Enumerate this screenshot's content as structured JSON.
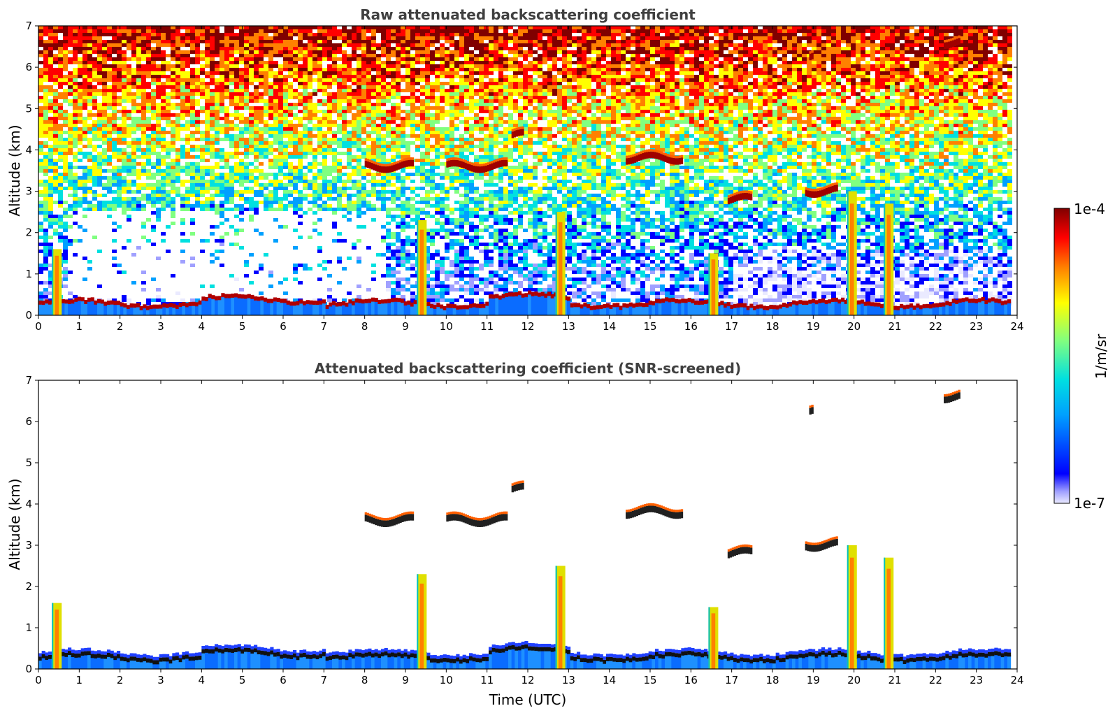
{
  "chart_data": [
    {
      "type": "heatmap",
      "title": "Raw attenuated backscattering coefficient",
      "xlabel": "",
      "ylabel": "Altitude (km)",
      "xlim": [
        0,
        24
      ],
      "ylim": [
        0,
        7
      ],
      "x_ticks": [
        "0",
        "1",
        "2",
        "3",
        "4",
        "5",
        "6",
        "7",
        "8",
        "9",
        "10",
        "11",
        "12",
        "13",
        "14",
        "15",
        "16",
        "17",
        "18",
        "19",
        "20",
        "21",
        "22",
        "23",
        "24"
      ],
      "y_ticks": [
        "0",
        "1",
        "2",
        "3",
        "4",
        "5",
        "6",
        "7"
      ],
      "data_end_time": 23.8,
      "features": {
        "boundary_layer_top_km": 0.25,
        "cloud_layers": [
          {
            "start": 8.0,
            "end": 9.2,
            "alt": 3.6
          },
          {
            "start": 10.0,
            "end": 11.5,
            "alt": 3.6
          },
          {
            "start": 14.4,
            "end": 15.8,
            "alt": 3.8
          },
          {
            "start": 16.9,
            "end": 17.5,
            "alt": 2.8
          },
          {
            "start": 18.8,
            "end": 19.6,
            "alt": 3.0
          },
          {
            "start": 11.6,
            "end": 11.9,
            "alt": 4.35
          },
          {
            "start": 18.9,
            "end": 19.0,
            "alt": 6.25
          },
          {
            "start": 22.2,
            "end": 22.6,
            "alt": 6.6
          }
        ],
        "precipitation_columns": [
          {
            "t": 0.45,
            "top": 1.6
          },
          {
            "t": 9.4,
            "top": 2.3
          },
          {
            "t": 12.8,
            "top": 2.5
          },
          {
            "t": 16.55,
            "top": 1.5
          },
          {
            "t": 19.95,
            "top": 3.0
          },
          {
            "t": 20.85,
            "top": 2.7
          }
        ]
      }
    },
    {
      "type": "heatmap",
      "title": "Attenuated backscattering coefficient (SNR-screened)",
      "xlabel": "Time (UTC)",
      "ylabel": "Altitude (km)",
      "xlim": [
        0,
        24
      ],
      "ylim": [
        0,
        7
      ],
      "x_ticks": [
        "0",
        "1",
        "2",
        "3",
        "4",
        "5",
        "6",
        "7",
        "8",
        "9",
        "10",
        "11",
        "12",
        "13",
        "14",
        "15",
        "16",
        "17",
        "18",
        "19",
        "20",
        "21",
        "22",
        "23",
        "24"
      ],
      "y_ticks": [
        "0",
        "1",
        "2",
        "3",
        "4",
        "5",
        "6",
        "7"
      ]
    }
  ],
  "colorbar": {
    "label": "1/m/sr",
    "max_label": "1e-4",
    "min_label": "1e-7",
    "colors": [
      "#eaeaff",
      "#a0a0ff",
      "#0000ff",
      "#00a0ff",
      "#00e0e0",
      "#80ff80",
      "#ffff00",
      "#ff8000",
      "#ff0000",
      "#800000"
    ]
  }
}
